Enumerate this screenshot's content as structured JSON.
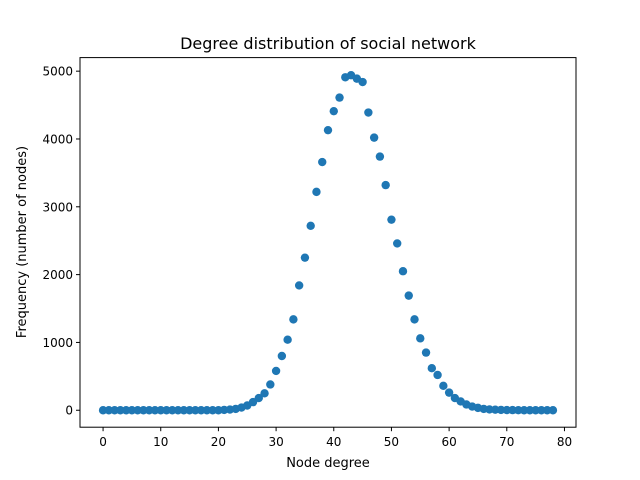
{
  "chart_data": {
    "type": "scatter",
    "title": "Degree distribution of social network",
    "xlabel": "Node degree",
    "ylabel": "Frequency (number of nodes)",
    "xlim": [
      -4,
      82
    ],
    "ylim": [
      -250,
      5200
    ],
    "x_ticks": [
      0,
      10,
      20,
      30,
      40,
      50,
      60,
      70,
      80
    ],
    "y_ticks": [
      0,
      1000,
      2000,
      3000,
      4000,
      5000
    ],
    "grid": false,
    "marker_color": "#1f77b4",
    "series": [
      {
        "x": [
          0,
          1,
          2,
          3,
          4,
          5,
          6,
          7,
          8,
          9,
          10,
          11,
          12,
          13,
          14,
          15,
          16,
          17,
          18,
          19,
          20,
          21,
          22,
          23,
          24,
          25,
          26,
          27,
          28,
          29,
          30,
          31,
          32,
          33,
          34,
          35,
          36,
          37,
          38,
          39,
          40,
          41,
          42,
          43,
          44,
          45,
          46,
          47,
          48,
          49,
          50,
          51,
          52,
          53,
          54,
          55,
          56,
          57,
          58,
          59,
          60,
          61,
          62,
          63,
          64,
          65,
          66,
          67,
          68,
          69,
          70,
          71,
          72,
          73,
          74,
          75,
          76,
          77,
          78
        ],
        "y": [
          0,
          0,
          0,
          0,
          0,
          0,
          0,
          0,
          0,
          0,
          0,
          0,
          0,
          0,
          0,
          0,
          0,
          0,
          0,
          0,
          0,
          5,
          10,
          20,
          40,
          70,
          120,
          180,
          250,
          380,
          580,
          800,
          1040,
          1340,
          1840,
          2250,
          2720,
          3220,
          3660,
          4130,
          4410,
          4610,
          4910,
          4940,
          4890,
          4840,
          4390,
          4020,
          3740,
          3320,
          2810,
          2460,
          2050,
          1690,
          1340,
          1060,
          850,
          620,
          520,
          360,
          260,
          180,
          130,
          85,
          55,
          35,
          20,
          12,
          8,
          5,
          3,
          2,
          1,
          0,
          0,
          0,
          0,
          0,
          0
        ]
      }
    ]
  }
}
